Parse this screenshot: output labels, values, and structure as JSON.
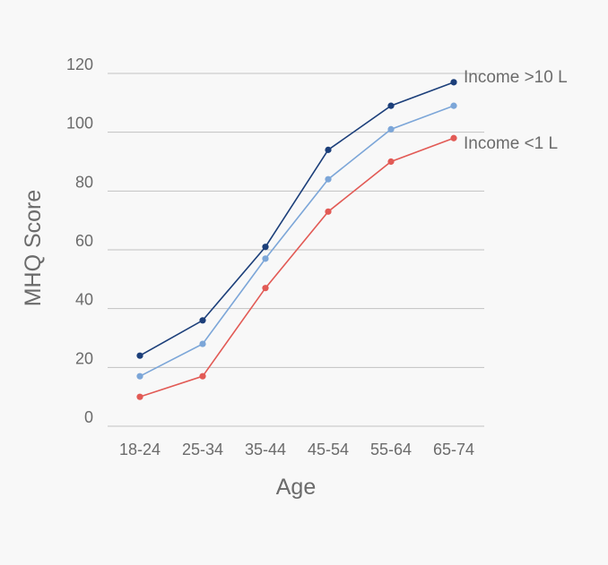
{
  "chart_data": {
    "type": "line",
    "title": "",
    "xlabel": "Age",
    "ylabel": "MHQ Score",
    "categories": [
      "18-24",
      "25-34",
      "35-44",
      "45-54",
      "55-64",
      "65-74"
    ],
    "ylim": [
      0,
      120
    ],
    "yticks": [
      0,
      20,
      40,
      60,
      80,
      100,
      120
    ],
    "grid": true,
    "series": [
      {
        "name": "Income >10 L",
        "color": "#1c3f7a",
        "values": [
          24,
          36,
          61,
          94,
          109,
          117
        ]
      },
      {
        "name": "",
        "color": "#7ca6d8",
        "values": [
          17,
          28,
          57,
          84,
          101,
          109
        ]
      },
      {
        "name": "Income <1 L",
        "color": "#e25a55",
        "values": [
          10,
          17,
          47,
          73,
          90,
          98
        ]
      }
    ]
  }
}
